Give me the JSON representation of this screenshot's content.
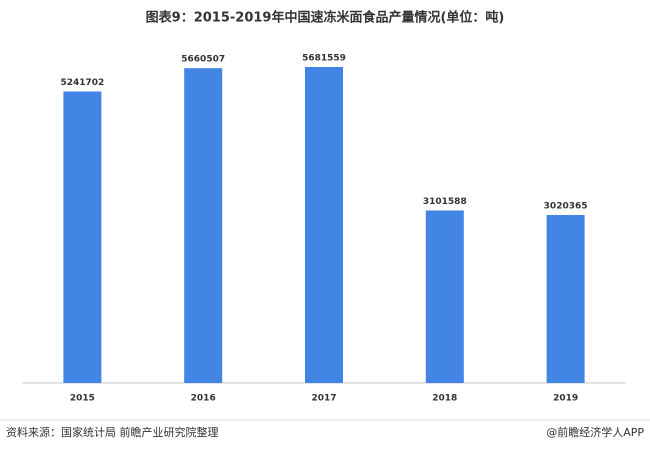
{
  "chart_data": {
    "type": "bar",
    "title": "图表9：2015-2019年中国速冻米面食品产量情况(单位：吨)",
    "categories": [
      "2015",
      "2016",
      "2017",
      "2018",
      "2019"
    ],
    "values": [
      5241702,
      5660507,
      5681559,
      3101588,
      3020365
    ],
    "color": "#4285e4",
    "source": "资料来源：国家统计局 前瞻产业研究院整理",
    "credit": "@前瞻经济学人APP"
  }
}
